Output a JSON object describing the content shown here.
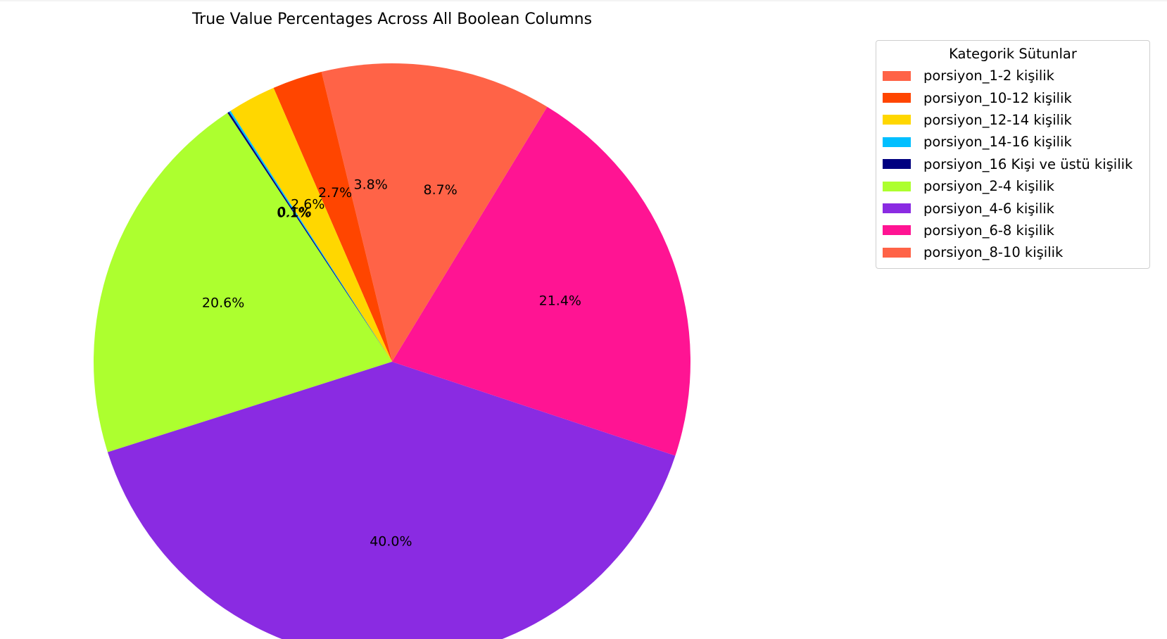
{
  "chart_data": {
    "type": "pie",
    "title": "True Value Percentages Across All Boolean Columns",
    "legend_title": "Kategorik Sütunlar",
    "legend_placement": "top-right",
    "start_angle_deg": 90,
    "direction": "counterclockwise",
    "slices": [
      {
        "label": "porsiyon_1-2 kişilik",
        "value": 3.8,
        "display": "3.8%",
        "color": "#FF6347"
      },
      {
        "label": "porsiyon_10-12 kişilik",
        "value": 2.7,
        "display": "2.7%",
        "color": "#FF4500"
      },
      {
        "label": "porsiyon_12-14 kişilik",
        "value": 2.6,
        "display": "2.6%",
        "color": "#FFD700"
      },
      {
        "label": "porsiyon_14-16 kişilik",
        "value": 0.1,
        "display": "0.1%",
        "color": "#00BFFF"
      },
      {
        "label": "porsiyon_16 Kişi ve üstü kişilik",
        "value": 0.1,
        "display": "0.1%",
        "color": "#000080"
      },
      {
        "label": "porsiyon_2-4 kişilik",
        "value": 20.6,
        "display": "20.6%",
        "color": "#ADFF2F"
      },
      {
        "label": "porsiyon_4-6 kişilik",
        "value": 40.0,
        "display": "40.0%",
        "color": "#8A2BE2"
      },
      {
        "label": "porsiyon_6-8 kişilik",
        "value": 21.4,
        "display": "21.4%",
        "color": "#FF1493"
      },
      {
        "label": "porsiyon_8-10 kişilik",
        "value": 8.7,
        "display": "8.7%",
        "color": "#FF6347"
      }
    ]
  }
}
